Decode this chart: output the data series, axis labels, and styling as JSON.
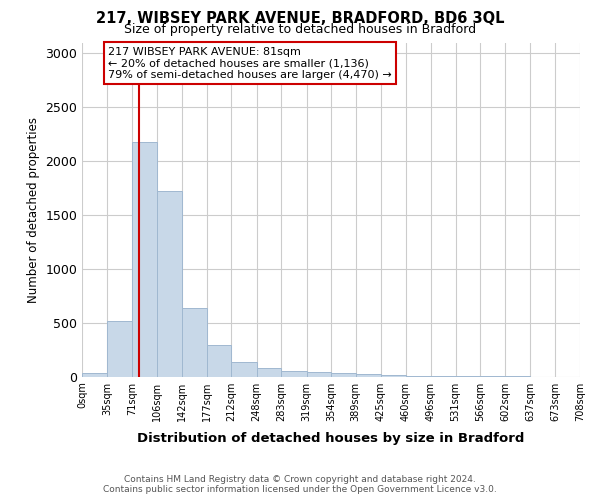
{
  "title1": "217, WIBSEY PARK AVENUE, BRADFORD, BD6 3QL",
  "title2": "Size of property relative to detached houses in Bradford",
  "xlabel": "Distribution of detached houses by size in Bradford",
  "ylabel": "Number of detached properties",
  "bin_labels": [
    "0sqm",
    "35sqm",
    "71sqm",
    "106sqm",
    "142sqm",
    "177sqm",
    "212sqm",
    "248sqm",
    "283sqm",
    "319sqm",
    "354sqm",
    "389sqm",
    "425sqm",
    "460sqm",
    "496sqm",
    "531sqm",
    "566sqm",
    "602sqm",
    "637sqm",
    "673sqm",
    "708sqm"
  ],
  "bin_edges": [
    0,
    35,
    71,
    106,
    142,
    177,
    212,
    248,
    283,
    319,
    354,
    389,
    425,
    460,
    496,
    531,
    566,
    602,
    637,
    673,
    708
  ],
  "bar_heights": [
    30,
    520,
    2180,
    1720,
    640,
    290,
    140,
    80,
    50,
    40,
    30,
    20,
    15,
    10,
    5,
    3,
    2,
    2,
    1,
    1
  ],
  "bar_color": "#c8d8e8",
  "bar_edge_color": "#a0b8d0",
  "property_size": 81,
  "vline_color": "#cc0000",
  "annotation_text": "217 WIBSEY PARK AVENUE: 81sqm\n← 20% of detached houses are smaller (1,136)\n79% of semi-detached houses are larger (4,470) →",
  "annotation_box_color": "#ffffff",
  "annotation_box_edge": "#cc0000",
  "ylim": [
    0,
    3100
  ],
  "yticks": [
    0,
    500,
    1000,
    1500,
    2000,
    2500,
    3000
  ],
  "footer_line1": "Contains HM Land Registry data © Crown copyright and database right 2024.",
  "footer_line2": "Contains public sector information licensed under the Open Government Licence v3.0.",
  "bg_color": "#ffffff",
  "grid_color": "#cccccc"
}
